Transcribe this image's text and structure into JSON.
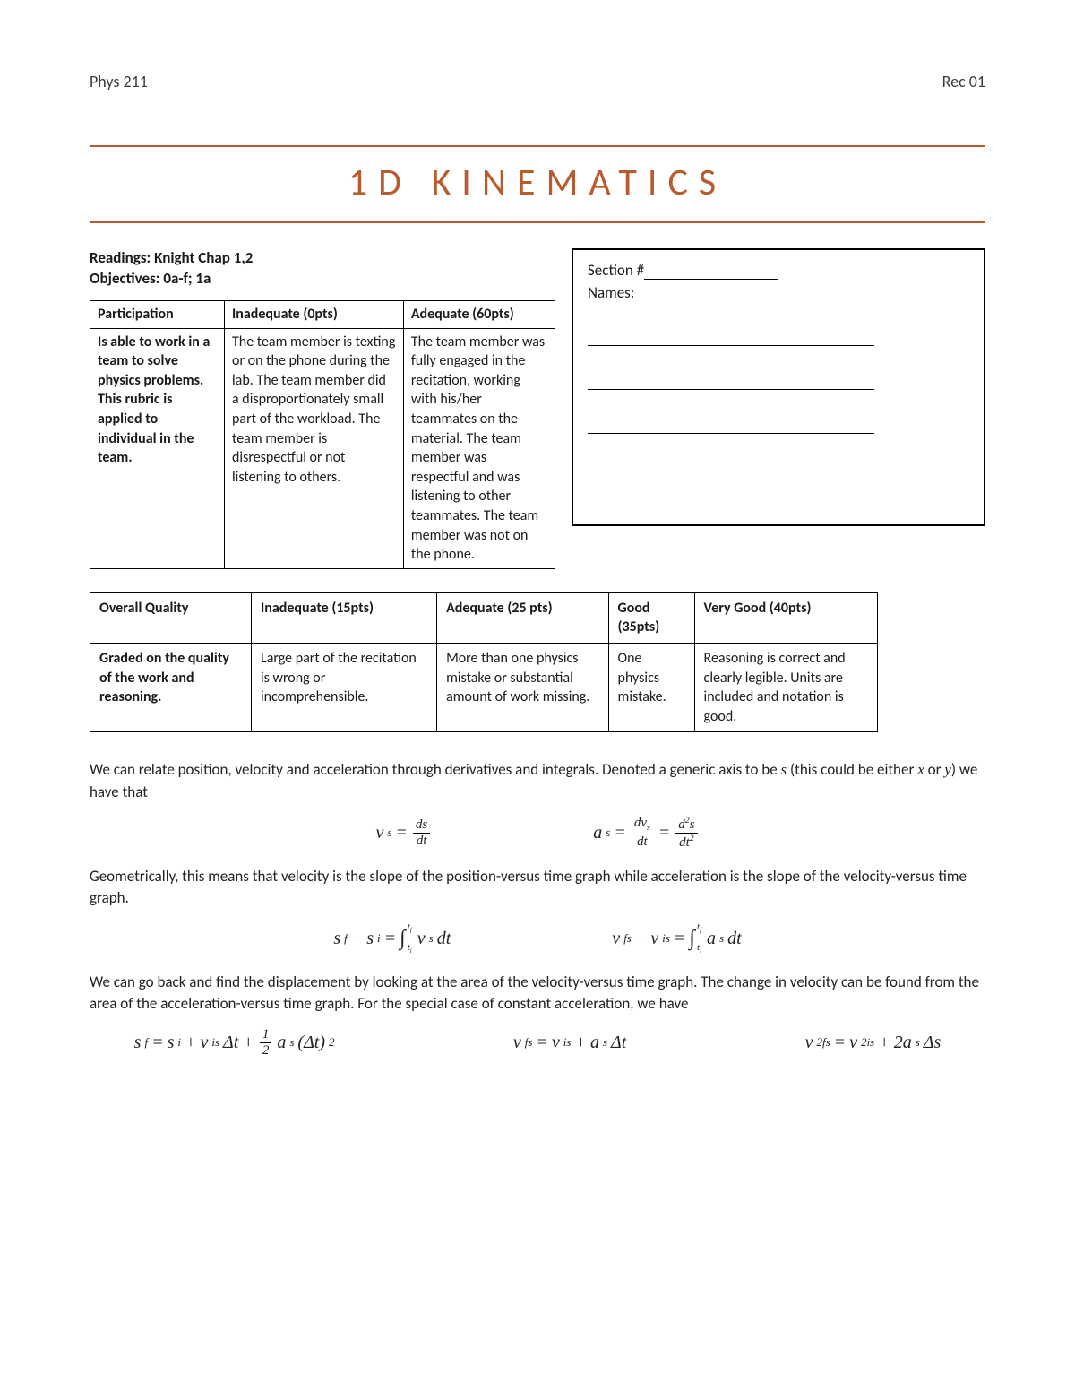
{
  "header": {
    "left": "Phys 211",
    "right": "Rec 01"
  },
  "title": "1D KINEMATICS",
  "title_color": "#b85c2f",
  "rule_color": "#b85c2f",
  "readings_label": "Readings:",
  "readings_value": "Knight Chap 1,2",
  "objectives_label": "Objectives:",
  "objectives_value": "0a-f; 1a",
  "section_box": {
    "section_label": "Section #",
    "names_label": "Names:"
  },
  "participation_table": {
    "headers": [
      "Participation",
      "Inadequate (0pts)",
      "Adequate (60pts)"
    ],
    "row": [
      "Is able to work in a team to solve physics problems. This rubric is applied to individual in the team.",
      "The team member is texting or on the phone during the lab. The team member did a disproportionately small part of the workload. The team member is disrespectful or not listening to others.",
      "The team member was fully engaged in the recitation, working with his/her teammates on the material. The team member was respectful and was listening to other teammates. The team member was not on the phone."
    ]
  },
  "quality_table": {
    "headers": [
      "Overall Quality",
      "Inadequate (15pts)",
      "Adequate (25 pts)",
      "Good (35pts)",
      "Very Good (40pts)"
    ],
    "row": [
      "Graded on the quality of the work and reasoning.",
      "Large part of the recitation is wrong or incomprehensible.",
      "More than one physics mistake or substantial amount of work missing.",
      "One physics mistake.",
      "Reasoning is correct and clearly legible. Units are included and notation is good."
    ]
  },
  "paragraphs": {
    "p1_a": "We can relate position, velocity and acceleration through derivatives and integrals. Denoted a generic axis to be ",
    "p1_b": " (this could be either ",
    "p1_c": " or ",
    "p1_d": ") we have that",
    "p2": "Geometrically, this means that velocity is the slope of the position-versus time graph while acceleration is the slope of the velocity-versus time graph.",
    "p3": "We can go back and find the displacement by looking at the area of the velocity-versus time graph. The change in velocity can be found from the area of the acceleration-versus time graph. For the special case of constant acceleration, we have"
  },
  "symbols": {
    "s": "s",
    "x": "x",
    "y": "y"
  },
  "equations": {
    "eq1_lhs": "v",
    "eq1_sub": "s",
    "eq1_frac_num": "ds",
    "eq1_frac_den": "dt",
    "eq2_lhs": "a",
    "eq2_sub": "s",
    "eq2_f1_num": "dv",
    "eq2_f1_num_sub": "s",
    "eq2_f1_den": "dt",
    "eq2_f2_num": "d",
    "eq2_f2_num_sup": "2",
    "eq2_f2_num2": "s",
    "eq2_f2_den": "dt",
    "eq2_f2_den_sup": "2",
    "eq3_lhs_a": "s",
    "eq3_lhs_a_sub": "f",
    "eq3_lhs_b": "s",
    "eq3_lhs_b_sub": "i",
    "eq3_int_upper": "t",
    "eq3_int_upper_sub": "f",
    "eq3_int_lower": "t",
    "eq3_int_lower_sub": "i",
    "eq3_igrand": "v",
    "eq3_igrand_sub": "s",
    "eq3_dt": "dt",
    "eq4_lhs_a": "v",
    "eq4_lhs_a_sub": "fs",
    "eq4_lhs_b": "v",
    "eq4_lhs_b_sub": "is",
    "eq4_igrand": "a",
    "eq4_igrand_sub": "s",
    "eq5_a": "s",
    "eq5_a_sub": "f",
    "eq5_b": "s",
    "eq5_b_sub": "i",
    "eq5_c": "v",
    "eq5_c_sub": "is",
    "eq5_dt": "Δt",
    "eq5_half_num": "1",
    "eq5_half_den": "2",
    "eq5_d": "a",
    "eq5_d_sub": "s",
    "eq5_dt2": "(Δt)",
    "eq5_dt2_sup": "2",
    "eq6_a": "v",
    "eq6_a_sub": "fs",
    "eq6_b": "v",
    "eq6_b_sub": "is",
    "eq6_c": "a",
    "eq6_c_sub": "s",
    "eq6_dt": "Δt",
    "eq7_a": "v",
    "eq7_a_sub": "fs",
    "eq7_a_sup": "2",
    "eq7_b": "v",
    "eq7_b_sub": "is",
    "eq7_b_sup": "2",
    "eq7_c": "2a",
    "eq7_c_sub": "s",
    "eq7_ds": " Δs"
  }
}
